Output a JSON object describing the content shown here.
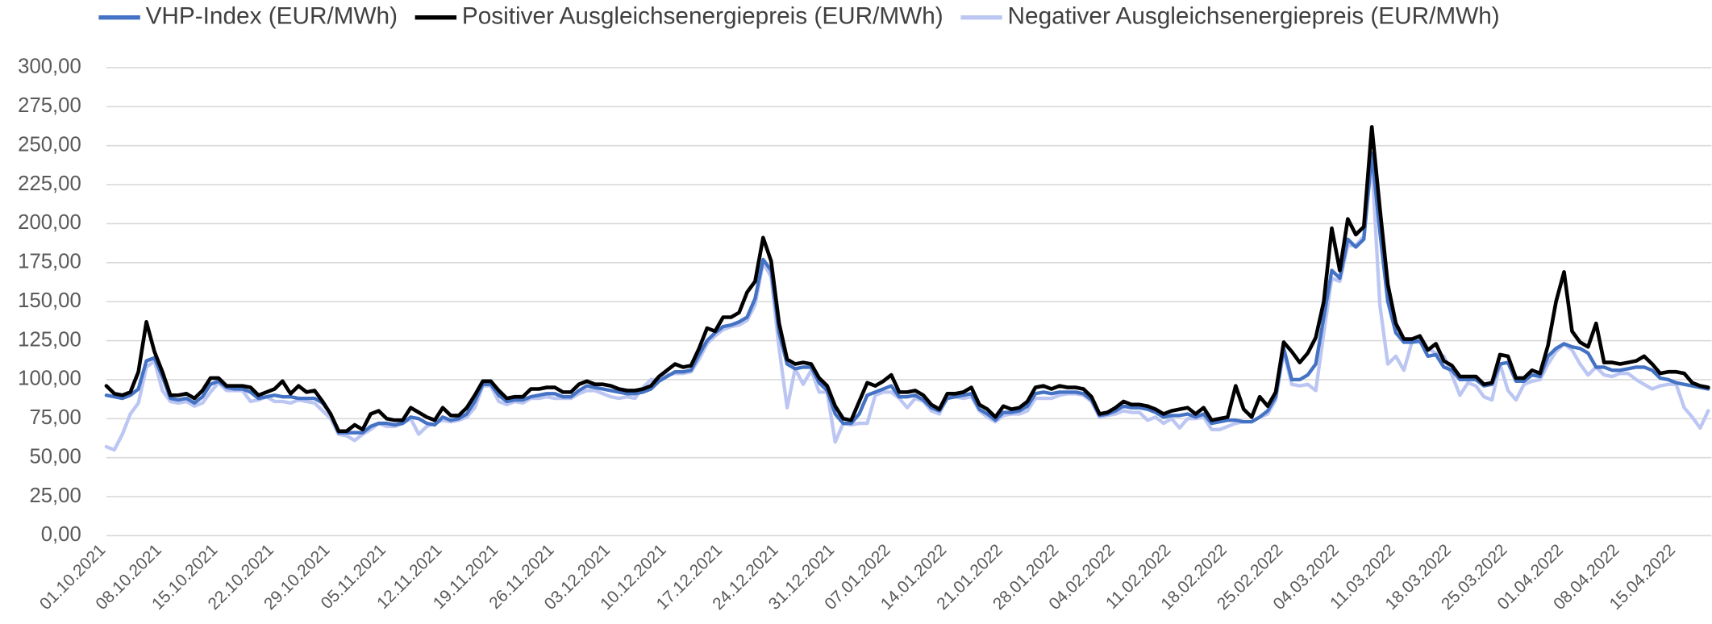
{
  "chart_data": {
    "type": "line",
    "legend": "top",
    "grid": true,
    "categories": [
      "01.10.2021",
      null,
      null,
      null,
      null,
      null,
      null,
      "08.10.2021",
      null,
      null,
      null,
      null,
      null,
      null,
      "15.10.2021",
      null,
      null,
      null,
      null,
      null,
      null,
      "22.10.2021",
      null,
      null,
      null,
      null,
      null,
      null,
      "29.10.2021",
      null,
      null,
      null,
      null,
      null,
      null,
      "05.11.2021",
      null,
      null,
      null,
      null,
      null,
      null,
      "12.11.2021",
      null,
      null,
      null,
      null,
      null,
      null,
      "19.11.2021",
      null,
      null,
      null,
      null,
      null,
      null,
      "26.11.2021",
      null,
      null,
      null,
      null,
      null,
      null,
      "03.12.2021",
      null,
      null,
      null,
      null,
      null,
      null,
      "10.12.2021",
      null,
      null,
      null,
      null,
      null,
      null,
      "17.12.2021",
      null,
      null,
      null,
      null,
      null,
      null,
      "24.12.2021",
      null,
      null,
      null,
      null,
      null,
      null,
      "31.12.2021",
      null,
      null,
      null,
      null,
      null,
      null,
      "07.01.2022",
      null,
      null,
      null,
      null,
      null,
      null,
      "14.01.2022",
      null,
      null,
      null,
      null,
      null,
      null,
      "21.01.2022",
      null,
      null,
      null,
      null,
      null,
      null,
      "28.01.2022",
      null,
      null,
      null,
      null,
      null,
      null,
      "04.02.2022",
      null,
      null,
      null,
      null,
      null,
      null,
      "11.02.2022",
      null,
      null,
      null,
      null,
      null,
      null,
      "18.02.2022",
      null,
      null,
      null,
      null,
      null,
      null,
      "25.02.2022",
      null,
      null,
      null,
      null,
      null,
      null,
      "04.03.2022",
      null,
      null,
      null,
      null,
      null,
      null,
      "11.03.2022",
      null,
      null,
      null,
      null,
      null,
      null,
      "18.03.2022",
      null,
      null,
      null,
      null,
      null,
      null,
      "25.03.2022",
      null,
      null,
      null,
      null,
      null,
      null,
      "01.04.2022",
      null,
      null,
      null,
      null,
      null,
      null,
      "08.04.2022",
      null,
      null,
      null,
      null,
      null,
      null,
      "15.04.2022",
      null,
      null,
      null,
      null
    ],
    "series": [
      {
        "name": "VHP-Index (EUR/MWh)",
        "color": "#4472c4",
        "values": [
          90,
          89,
          88,
          90,
          94,
          112,
          114,
          102,
          88,
          87,
          88,
          85,
          89,
          97,
          99,
          95,
          94,
          94,
          92,
          88,
          89,
          90,
          89,
          89,
          88,
          88,
          88,
          85,
          78,
          66,
          66,
          66,
          66,
          70,
          72,
          72,
          71,
          72,
          76,
          75,
          72,
          71,
          76,
          74,
          75,
          78,
          86,
          97,
          97,
          90,
          86,
          87,
          87,
          89,
          90,
          91,
          91,
          89,
          89,
          93,
          96,
          95,
          94,
          93,
          92,
          91,
          91,
          92,
          94,
          99,
          102,
          105,
          105,
          106,
          116,
          125,
          130,
          134,
          135,
          137,
          140,
          152,
          177,
          170,
          130,
          110,
          107,
          108,
          108,
          98,
          93,
          78,
          72,
          72,
          78,
          90,
          92,
          94,
          96,
          89,
          89,
          90,
          87,
          82,
          80,
          88,
          89,
          90,
          91,
          81,
          78,
          74,
          79,
          79,
          80,
          83,
          91,
          92,
          91,
          92,
          92,
          92,
          91,
          87,
          77,
          78,
          80,
          83,
          82,
          82,
          81,
          79,
          76,
          77,
          77,
          78,
          76,
          78,
          72,
          73,
          74,
          74,
          73,
          73,
          76,
          80,
          89,
          120,
          100,
          100,
          103,
          110,
          140,
          170,
          165,
          190,
          185,
          190,
          245,
          195,
          150,
          130,
          124,
          124,
          125,
          115,
          116,
          108,
          106,
          100,
          100,
          100,
          96,
          97,
          110,
          111,
          99,
          99,
          103,
          102,
          115,
          120,
          123,
          121,
          120,
          117,
          108,
          108,
          106,
          106,
          107,
          108,
          108,
          106,
          101,
          100,
          98,
          97,
          96,
          95,
          94
        ]
      },
      {
        "name": "Positiver Ausgleichsenergiepreis (EUR/MWh)",
        "color": "#000000",
        "values": [
          96,
          91,
          90,
          92,
          105,
          137,
          118,
          105,
          90,
          90,
          91,
          88,
          93,
          101,
          101,
          96,
          96,
          96,
          95,
          90,
          92,
          94,
          99,
          91,
          96,
          92,
          93,
          86,
          78,
          67,
          67,
          71,
          68,
          78,
          80,
          75,
          74,
          74,
          82,
          79,
          76,
          74,
          82,
          77,
          77,
          82,
          90,
          99,
          99,
          93,
          88,
          89,
          89,
          94,
          94,
          95,
          95,
          92,
          92,
          97,
          99,
          97,
          97,
          96,
          94,
          93,
          93,
          94,
          96,
          102,
          106,
          110,
          108,
          109,
          120,
          133,
          131,
          140,
          140,
          143,
          156,
          163,
          191,
          176,
          136,
          113,
          110,
          111,
          110,
          101,
          96,
          83,
          75,
          74,
          86,
          98,
          96,
          99,
          103,
          92,
          92,
          93,
          90,
          84,
          81,
          91,
          91,
          92,
          95,
          84,
          81,
          76,
          83,
          81,
          82,
          86,
          95,
          96,
          94,
          96,
          95,
          95,
          94,
          89,
          78,
          79,
          82,
          86,
          84,
          84,
          83,
          81,
          78,
          80,
          81,
          82,
          78,
          82,
          74,
          75,
          76,
          96,
          81,
          76,
          89,
          83,
          92,
          124,
          118,
          111,
          117,
          127,
          150,
          197,
          170,
          203,
          193,
          198,
          262,
          210,
          161,
          136,
          126,
          126,
          128,
          119,
          123,
          112,
          109,
          102,
          102,
          102,
          97,
          98,
          116,
          115,
          101,
          101,
          106,
          104,
          122,
          150,
          169,
          131,
          124,
          121,
          136,
          111,
          111,
          110,
          111,
          112,
          115,
          110,
          104,
          105,
          105,
          104,
          98,
          96,
          95
        ]
      },
      {
        "name": "Negativer Ausgleichsenergiepreis (EUR/MWh)",
        "color": "#bcc6f2",
        "values": [
          57,
          55,
          65,
          78,
          85,
          108,
          112,
          93,
          86,
          85,
          86,
          83,
          85,
          92,
          98,
          93,
          93,
          93,
          86,
          87,
          89,
          86,
          86,
          85,
          87,
          86,
          85,
          80,
          75,
          65,
          64,
          61,
          65,
          68,
          72,
          70,
          70,
          72,
          75,
          65,
          70,
          72,
          74,
          73,
          74,
          76,
          82,
          96,
          96,
          86,
          84,
          86,
          85,
          88,
          88,
          89,
          88,
          88,
          88,
          91,
          93,
          93,
          91,
          89,
          88,
          89,
          88,
          95,
          100,
          100,
          103,
          104,
          104,
          105,
          113,
          123,
          128,
          132,
          134,
          135,
          138,
          148,
          175,
          166,
          120,
          82,
          107,
          97,
          106,
          92,
          92,
          60,
          72,
          71,
          72,
          72,
          90,
          92,
          92,
          88,
          82,
          88,
          86,
          80,
          78,
          89,
          89,
          88,
          89,
          80,
          76,
          73,
          77,
          78,
          78,
          80,
          88,
          88,
          88,
          90,
          91,
          91,
          90,
          86,
          76,
          77,
          78,
          80,
          79,
          79,
          74,
          76,
          72,
          75,
          69,
          75,
          75,
          76,
          68,
          68,
          70,
          72,
          73,
          73,
          76,
          78,
          87,
          118,
          97,
          96,
          97,
          93,
          130,
          165,
          163,
          186,
          186,
          192,
          240,
          148,
          110,
          115,
          106,
          124,
          124,
          120,
          117,
          115,
          103,
          90,
          98,
          96,
          89,
          87,
          110,
          93,
          87,
          97,
          99,
          100,
          110,
          118,
          123,
          119,
          110,
          103,
          108,
          103,
          102,
          104,
          104,
          100,
          97,
          94,
          96,
          97,
          97,
          82,
          76,
          69,
          80
        ]
      }
    ],
    "ylim": [
      0,
      300
    ],
    "yticks": [
      {
        "value": 0,
        "label": "0,00"
      },
      {
        "value": 25,
        "label": "25,00"
      },
      {
        "value": 50,
        "label": "50,00"
      },
      {
        "value": 75,
        "label": "75,00"
      },
      {
        "value": 100,
        "label": "100,00"
      },
      {
        "value": 125,
        "label": "125,00"
      },
      {
        "value": 150,
        "label": "150,00"
      },
      {
        "value": 175,
        "label": "175,00"
      },
      {
        "value": 200,
        "label": "200,00"
      },
      {
        "value": 225,
        "label": "225,00"
      },
      {
        "value": 250,
        "label": "250,00"
      },
      {
        "value": 275,
        "label": "275,00"
      },
      {
        "value": 300,
        "label": "300,00"
      }
    ]
  }
}
